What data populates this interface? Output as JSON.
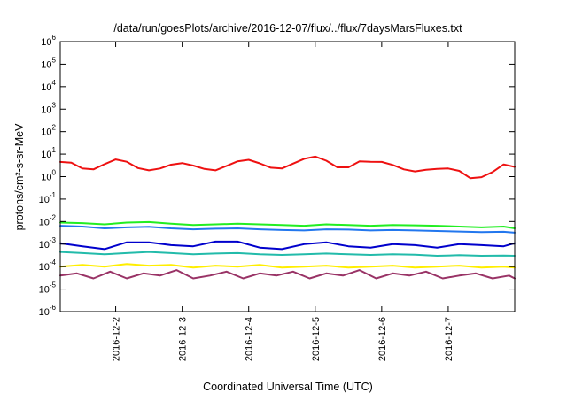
{
  "chart_data": {
    "type": "line",
    "title": "/data/run/goesPlots/archive/2016-12-07/flux/../flux/7daysMarsFluxes.txt",
    "xlabel": "Coordinated Universal Time (UTC)",
    "ylabel": "protons/cm²-s-sr-MeV",
    "y_scale": "log",
    "ylim": [
      1e-06,
      1000000.0
    ],
    "xlim": [
      "2016-12-01 04:00",
      "2016-12-08 00:00"
    ],
    "x_tick_labels": [
      "2016-12-2",
      "2016-12-3",
      "2016-12-4",
      "2016-12-5",
      "2016-12-6",
      "2016-12-7"
    ],
    "x_tick_dates": [
      "2016-12-02 00:00",
      "2016-12-03 00:00",
      "2016-12-04 00:00",
      "2016-12-05 00:00",
      "2016-12-06 00:00",
      "2016-12-07 00:00"
    ],
    "y_ticks": [
      {
        "base": "10",
        "exp": "-6",
        "value": 1e-06
      },
      {
        "base": "10",
        "exp": "-5",
        "value": 1e-05
      },
      {
        "base": "10",
        "exp": "-4",
        "value": 0.0001
      },
      {
        "base": "10",
        "exp": "-3",
        "value": 0.001
      },
      {
        "base": "10",
        "exp": "-2",
        "value": 0.01
      },
      {
        "base": "10",
        "exp": "-1",
        "value": 0.1
      },
      {
        "base": "10",
        "exp": "0",
        "value": 1
      },
      {
        "base": "10",
        "exp": "1",
        "value": 10
      },
      {
        "base": "10",
        "exp": "2",
        "value": 100
      },
      {
        "base": "10",
        "exp": "3",
        "value": 1000
      },
      {
        "base": "10",
        "exp": "4",
        "value": 10000
      },
      {
        "base": "10",
        "exp": "5",
        "value": 100000
      },
      {
        "base": "10",
        "exp": "6",
        "value": 1000000
      }
    ],
    "grid": false,
    "legend": "none",
    "series": [
      {
        "color": "#ee1111",
        "x": [
          "2016-12-01 04:00",
          "2016-12-01 08:00",
          "2016-12-01 12:00",
          "2016-12-01 16:00",
          "2016-12-01 20:00",
          "2016-12-02 00:00",
          "2016-12-02 04:00",
          "2016-12-02 08:00",
          "2016-12-02 12:00",
          "2016-12-02 16:00",
          "2016-12-02 20:00",
          "2016-12-03 00:00",
          "2016-12-03 04:00",
          "2016-12-03 08:00",
          "2016-12-03 12:00",
          "2016-12-03 16:00",
          "2016-12-03 20:00",
          "2016-12-04 00:00",
          "2016-12-04 04:00",
          "2016-12-04 08:00",
          "2016-12-04 12:00",
          "2016-12-04 16:00",
          "2016-12-04 20:00",
          "2016-12-05 00:00",
          "2016-12-05 04:00",
          "2016-12-05 08:00",
          "2016-12-05 12:00",
          "2016-12-05 16:00",
          "2016-12-05 20:00",
          "2016-12-06 00:00",
          "2016-12-06 04:00",
          "2016-12-06 08:00",
          "2016-12-06 12:00",
          "2016-12-06 16:00",
          "2016-12-06 20:00",
          "2016-12-07 00:00",
          "2016-12-07 04:00",
          "2016-12-07 08:00",
          "2016-12-07 12:00",
          "2016-12-07 16:00",
          "2016-12-07 20:00",
          "2016-12-08 00:00"
        ],
        "values": [
          4.5,
          4.2,
          2.3,
          2.1,
          3.6,
          5.8,
          4.6,
          2.4,
          1.9,
          2.3,
          3.4,
          4.0,
          3.1,
          2.2,
          1.9,
          3.0,
          4.8,
          5.6,
          3.9,
          2.5,
          2.3,
          3.8,
          6.2,
          7.8,
          5.1,
          2.6,
          2.6,
          4.8,
          4.6,
          4.5,
          3.3,
          2.1,
          1.7,
          2.0,
          2.2,
          2.3,
          1.8,
          0.85,
          0.95,
          1.6,
          3.5,
          2.7
        ]
      },
      {
        "color": "#22ee22",
        "x": [
          "2016-12-01 04:00",
          "2016-12-01 12:00",
          "2016-12-01 20:00",
          "2016-12-02 04:00",
          "2016-12-02 12:00",
          "2016-12-02 20:00",
          "2016-12-03 04:00",
          "2016-12-03 12:00",
          "2016-12-03 20:00",
          "2016-12-04 04:00",
          "2016-12-04 12:00",
          "2016-12-04 20:00",
          "2016-12-05 04:00",
          "2016-12-05 12:00",
          "2016-12-05 20:00",
          "2016-12-06 04:00",
          "2016-12-06 12:00",
          "2016-12-06 20:00",
          "2016-12-07 04:00",
          "2016-12-07 12:00",
          "2016-12-07 20:00",
          "2016-12-08 00:00"
        ],
        "values": [
          0.009,
          0.0085,
          0.0075,
          0.009,
          0.0095,
          0.008,
          0.007,
          0.0075,
          0.008,
          0.0075,
          0.007,
          0.0065,
          0.0075,
          0.007,
          0.0065,
          0.007,
          0.0068,
          0.0065,
          0.006,
          0.0055,
          0.006,
          0.005
        ]
      },
      {
        "color": "#2277ee",
        "x": [
          "2016-12-01 04:00",
          "2016-12-01 12:00",
          "2016-12-01 20:00",
          "2016-12-02 04:00",
          "2016-12-02 12:00",
          "2016-12-02 20:00",
          "2016-12-03 04:00",
          "2016-12-03 12:00",
          "2016-12-03 20:00",
          "2016-12-04 04:00",
          "2016-12-04 12:00",
          "2016-12-04 20:00",
          "2016-12-05 04:00",
          "2016-12-05 12:00",
          "2016-12-05 20:00",
          "2016-12-06 04:00",
          "2016-12-06 12:00",
          "2016-12-06 20:00",
          "2016-12-07 04:00",
          "2016-12-07 12:00",
          "2016-12-07 20:00",
          "2016-12-08 00:00"
        ],
        "values": [
          0.0065,
          0.006,
          0.005,
          0.0055,
          0.0058,
          0.005,
          0.0045,
          0.0048,
          0.005,
          0.0045,
          0.0042,
          0.004,
          0.0045,
          0.0044,
          0.004,
          0.0042,
          0.004,
          0.0038,
          0.0036,
          0.0034,
          0.0035,
          0.0032
        ]
      },
      {
        "color": "#0000cc",
        "x": [
          "2016-12-01 04:00",
          "2016-12-01 12:00",
          "2016-12-01 20:00",
          "2016-12-02 04:00",
          "2016-12-02 12:00",
          "2016-12-02 20:00",
          "2016-12-03 04:00",
          "2016-12-03 12:00",
          "2016-12-03 20:00",
          "2016-12-04 04:00",
          "2016-12-04 12:00",
          "2016-12-04 20:00",
          "2016-12-05 04:00",
          "2016-12-05 12:00",
          "2016-12-05 20:00",
          "2016-12-06 04:00",
          "2016-12-06 12:00",
          "2016-12-06 20:00",
          "2016-12-07 04:00",
          "2016-12-07 12:00",
          "2016-12-07 20:00",
          "2016-12-08 00:00"
        ],
        "values": [
          0.0011,
          0.0008,
          0.0006,
          0.0012,
          0.0012,
          0.0009,
          0.0008,
          0.0013,
          0.0013,
          0.0007,
          0.0006,
          0.001,
          0.0012,
          0.0008,
          0.0007,
          0.001,
          0.0009,
          0.0007,
          0.001,
          0.0009,
          0.0008,
          0.0011
        ]
      },
      {
        "color": "#22bbaa",
        "x": [
          "2016-12-01 04:00",
          "2016-12-01 12:00",
          "2016-12-01 20:00",
          "2016-12-02 04:00",
          "2016-12-02 12:00",
          "2016-12-02 20:00",
          "2016-12-03 04:00",
          "2016-12-03 12:00",
          "2016-12-03 20:00",
          "2016-12-04 04:00",
          "2016-12-04 12:00",
          "2016-12-04 20:00",
          "2016-12-05 04:00",
          "2016-12-05 12:00",
          "2016-12-05 20:00",
          "2016-12-06 04:00",
          "2016-12-06 12:00",
          "2016-12-06 20:00",
          "2016-12-07 04:00",
          "2016-12-07 12:00",
          "2016-12-07 20:00",
          "2016-12-08 00:00"
        ],
        "values": [
          0.00045,
          0.0004,
          0.00035,
          0.0004,
          0.00045,
          0.0004,
          0.00035,
          0.00038,
          0.0004,
          0.00035,
          0.00033,
          0.00035,
          0.00038,
          0.00035,
          0.00033,
          0.00035,
          0.00034,
          0.0003,
          0.00032,
          0.0003,
          0.00031,
          0.0003
        ]
      },
      {
        "color": "#ffee00",
        "x": [
          "2016-12-01 04:00",
          "2016-12-01 12:00",
          "2016-12-01 20:00",
          "2016-12-02 04:00",
          "2016-12-02 12:00",
          "2016-12-02 20:00",
          "2016-12-03 04:00",
          "2016-12-03 12:00",
          "2016-12-03 20:00",
          "2016-12-04 04:00",
          "2016-12-04 12:00",
          "2016-12-04 20:00",
          "2016-12-05 04:00",
          "2016-12-05 12:00",
          "2016-12-05 20:00",
          "2016-12-06 04:00",
          "2016-12-06 12:00",
          "2016-12-06 20:00",
          "2016-12-07 04:00",
          "2016-12-07 12:00",
          "2016-12-07 20:00",
          "2016-12-08 00:00"
        ],
        "values": [
          0.0001,
          0.00012,
          0.0001,
          0.00013,
          0.00011,
          0.00012,
          9e-05,
          0.00011,
          0.0001,
          0.00012,
          9e-05,
          0.0001,
          0.00011,
          9e-05,
          0.0001,
          0.00011,
          9e-05,
          0.0001,
          0.00011,
          9e-05,
          0.0001,
          9e-05
        ]
      },
      {
        "color": "#993366",
        "x": [
          "2016-12-01 04:00",
          "2016-12-01 10:00",
          "2016-12-01 16:00",
          "2016-12-01 22:00",
          "2016-12-02 04:00",
          "2016-12-02 10:00",
          "2016-12-02 16:00",
          "2016-12-02 22:00",
          "2016-12-03 04:00",
          "2016-12-03 10:00",
          "2016-12-03 16:00",
          "2016-12-03 22:00",
          "2016-12-04 04:00",
          "2016-12-04 10:00",
          "2016-12-04 16:00",
          "2016-12-04 22:00",
          "2016-12-05 04:00",
          "2016-12-05 10:00",
          "2016-12-05 16:00",
          "2016-12-05 22:00",
          "2016-12-06 04:00",
          "2016-12-06 10:00",
          "2016-12-06 16:00",
          "2016-12-06 22:00",
          "2016-12-07 04:00",
          "2016-12-07 10:00",
          "2016-12-07 16:00",
          "2016-12-07 22:00",
          "2016-12-08 00:00"
        ],
        "values": [
          4e-05,
          5e-05,
          3e-05,
          6e-05,
          3e-05,
          5e-05,
          4e-05,
          7e-05,
          3e-05,
          4e-05,
          6e-05,
          3e-05,
          5e-05,
          4e-05,
          6e-05,
          3e-05,
          5e-05,
          4e-05,
          7e-05,
          3e-05,
          5e-05,
          4e-05,
          6e-05,
          3e-05,
          4e-05,
          5e-05,
          3e-05,
          4e-05,
          3e-05
        ]
      }
    ]
  }
}
